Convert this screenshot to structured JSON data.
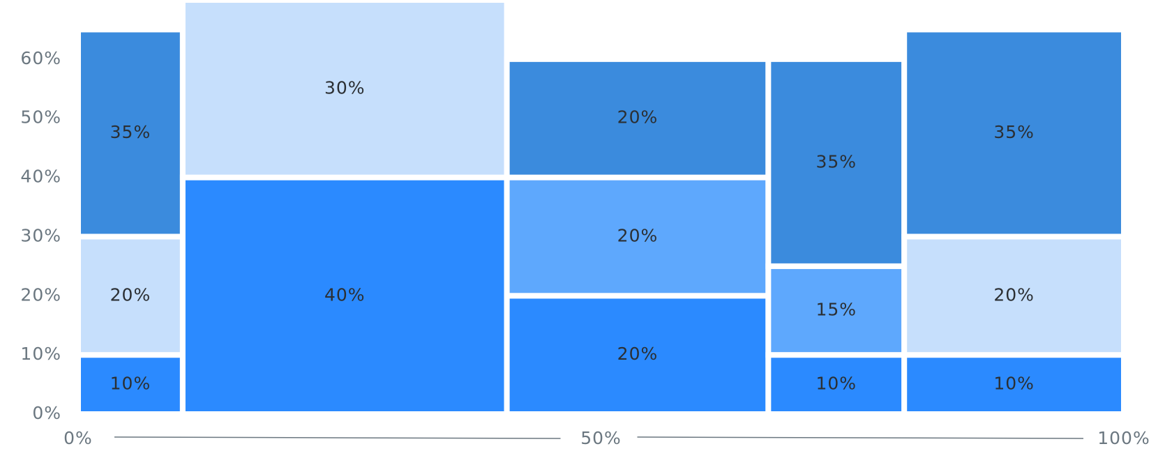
{
  "chart_data": {
    "type": "mekko",
    "xlim": [
      0,
      100
    ],
    "xticks": [
      {
        "value": 0,
        "label": "0%"
      },
      {
        "value": 50,
        "label": "50%"
      },
      {
        "value": 100,
        "label": "100%"
      }
    ],
    "ylim": [
      0,
      70
    ],
    "yticks": [
      {
        "value": 0,
        "label": "0%"
      },
      {
        "value": 10,
        "label": "10%"
      },
      {
        "value": 20,
        "label": "20%"
      },
      {
        "value": 30,
        "label": "30%"
      },
      {
        "value": 40,
        "label": "40%"
      },
      {
        "value": 50,
        "label": "50%"
      },
      {
        "value": 60,
        "label": "60%"
      }
    ],
    "columns": [
      {
        "width": 10,
        "values": [
          10,
          20,
          35
        ],
        "value_labels": [
          "10%",
          "20%",
          "35%"
        ],
        "colors": [
          "#2b8aff",
          "#c6dffc",
          "#3b8bdd"
        ]
      },
      {
        "width": 31,
        "values": [
          40,
          30
        ],
        "value_labels": [
          "40%",
          "30%"
        ],
        "colors": [
          "#2b8aff",
          "#c6dffc"
        ]
      },
      {
        "width": 25,
        "values": [
          20,
          20,
          20
        ],
        "value_labels": [
          "20%",
          "20%",
          "20%"
        ],
        "colors": [
          "#2b8aff",
          "#5ea8fd",
          "#3b8bdd"
        ]
      },
      {
        "width": 13,
        "values": [
          10,
          15,
          35
        ],
        "value_labels": [
          "10%",
          "15%",
          "35%"
        ],
        "colors": [
          "#2b8aff",
          "#5ea8fd",
          "#3b8bdd"
        ]
      },
      {
        "width": 21,
        "values": [
          10,
          20,
          35
        ],
        "value_labels": [
          "10%",
          "20%",
          "35%"
        ],
        "colors": [
          "#2b8aff",
          "#c6dffc",
          "#3b8bdd"
        ]
      }
    ]
  }
}
